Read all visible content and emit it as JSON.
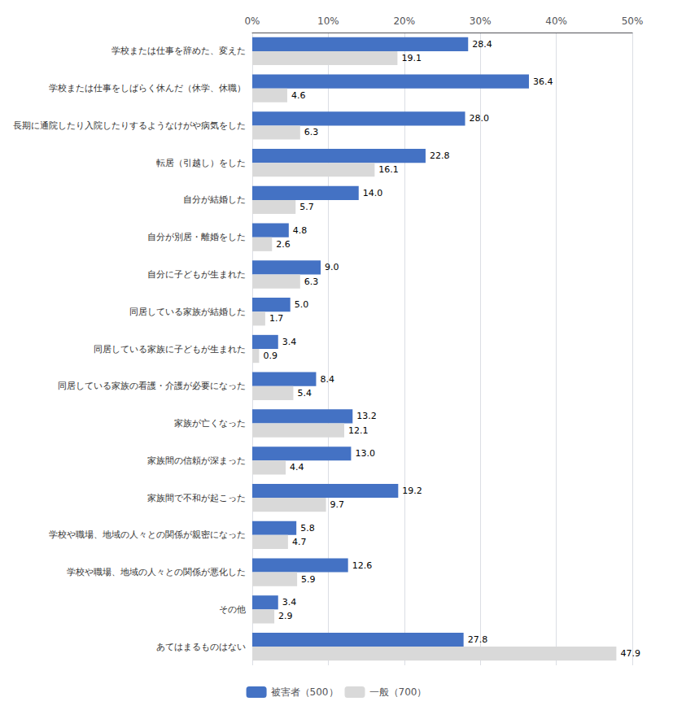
{
  "chart_data": {
    "type": "bar",
    "orientation": "horizontal",
    "categories": [
      "学校または仕事を辞めた、変えた",
      "学校または仕事をしばらく休んだ（休学、休職）",
      "長期に通院したり入院したりするようなけがや病気をした",
      "転居（引越し）をした",
      "自分が結婚した",
      "自分が別居・離婚をした",
      "自分に子どもが生まれた",
      "同居している家族が結婚した",
      "同居している家族に子どもが生まれた",
      "同居している家族の看護・介護が必要になった",
      "家族が亡くなった",
      "家族間の信頼が深まった",
      "家族間で不和が起こった",
      "学校や職場、地域の人々との関係が親密になった",
      "学校や職場、地域の人々との関係が悪化した",
      "その他",
      "あてはまるものはない"
    ],
    "series": [
      {
        "name": "被害者（500）",
        "color": "#4472C4",
        "values": [
          28.4,
          36.4,
          28.0,
          22.8,
          14.0,
          4.8,
          9.0,
          5.0,
          3.4,
          8.4,
          13.2,
          13.0,
          19.2,
          5.8,
          12.6,
          3.4,
          27.8
        ],
        "value_labels": [
          "28.4",
          "36.4",
          "28.0",
          "22.8",
          "14.0",
          "4.8",
          "9.0",
          "5.0",
          "3.4",
          "8.4",
          "13.2",
          "13.0",
          "19.2",
          "5.8",
          "12.6",
          "3.4",
          "27.8"
        ]
      },
      {
        "name": "一般（700）",
        "color": "#D9D9D9",
        "values": [
          19.1,
          4.6,
          6.3,
          16.1,
          5.7,
          2.6,
          6.3,
          1.7,
          0.9,
          5.4,
          12.1,
          4.4,
          9.7,
          4.7,
          5.9,
          2.9,
          47.9
        ],
        "value_labels": [
          "19.1",
          "4.6",
          "6.3",
          "16.1",
          "5.7",
          "2.6",
          "6.3",
          "1.7",
          "0.9",
          "5.4",
          "12.1",
          "4.4",
          "9.7",
          "4.7",
          "5.9",
          "2.9",
          "47.9"
        ]
      }
    ],
    "xlim": [
      0,
      50
    ],
    "xticks": [
      {
        "value": 0,
        "label": "0%"
      },
      {
        "value": 10,
        "label": "10%"
      },
      {
        "value": 20,
        "label": "20%"
      },
      {
        "value": 30,
        "label": "30%"
      },
      {
        "value": 40,
        "label": "40%"
      },
      {
        "value": 50,
        "label": "50%"
      }
    ],
    "grid": true,
    "legend": "bottom",
    "data_labels": true
  }
}
